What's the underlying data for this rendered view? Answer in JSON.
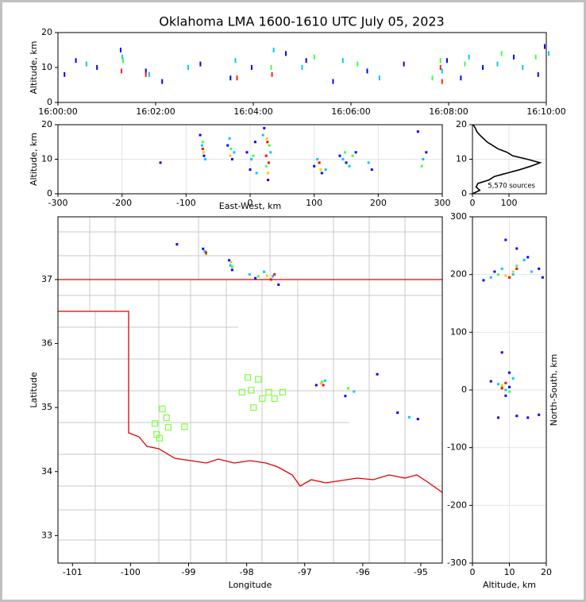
{
  "title": "Oklahoma LMA 1600-1610 UTC July 05, 2023",
  "chart_data": [
    {
      "type": "scatter",
      "ylabel": "Altitude, km",
      "xlim": [
        0,
        600
      ],
      "ylim": [
        0,
        20
      ],
      "xticks": [
        {
          "value": 0,
          "label": "16:00:00"
        },
        {
          "value": 120,
          "label": "16:02:00"
        },
        {
          "value": 240,
          "label": "16:04:00"
        },
        {
          "value": 360,
          "label": "16:06:00"
        },
        {
          "value": 480,
          "label": "16:08:00"
        },
        {
          "value": 600,
          "label": "16:10:00"
        }
      ],
      "yticks": [
        0,
        10,
        20
      ],
      "grid": false,
      "marker": "streak",
      "series": [
        {
          "color": "#0000ff",
          "x": [
            8,
            22,
            48,
            77,
            108,
            128,
            175,
            212,
            238,
            280,
            305,
            338,
            380,
            425,
            478,
            495,
            522,
            560,
            590,
            598
          ],
          "y": [
            8,
            12,
            10,
            15,
            9,
            6,
            11,
            7,
            10,
            14,
            12,
            6,
            9,
            11,
            12,
            7,
            10,
            13,
            8,
            16
          ]
        },
        {
          "color": "#00c8ff",
          "x": [
            35,
            79,
            112,
            160,
            218,
            265,
            300,
            350,
            395,
            472,
            505,
            540,
            571,
            603
          ],
          "y": [
            11,
            13,
            8,
            10,
            12,
            15,
            10,
            12,
            7,
            9,
            13,
            11,
            10,
            14
          ]
        },
        {
          "color": "#40ff40",
          "x": [
            80,
            262,
            315,
            368,
            460,
            470,
            500,
            545,
            587
          ],
          "y": [
            12,
            10,
            13,
            11,
            7,
            12,
            11,
            14,
            13
          ]
        },
        {
          "color": "#ff2000",
          "x": [
            78,
            108,
            220,
            263,
            470,
            472
          ],
          "y": [
            9,
            8,
            7,
            8,
            10,
            6
          ]
        }
      ]
    },
    {
      "type": "scatter",
      "xlabel": "East-West, km",
      "ylabel": "Altitude, km",
      "xlim": [
        -300,
        300
      ],
      "ylim": [
        0,
        20
      ],
      "xticks": [
        -300,
        -200,
        -100,
        0,
        100,
        200,
        300
      ],
      "yticks": [
        0,
        10,
        20
      ],
      "grid": true,
      "marker": "dot",
      "series": [
        {
          "color": "#0000ff",
          "x": [
            -140,
            -78,
            -72,
            -35,
            -28,
            -5,
            0,
            8,
            22,
            28,
            100,
            112,
            140,
            150,
            165,
            190,
            262,
            275
          ],
          "y": [
            9,
            17,
            11,
            14,
            10,
            12,
            7,
            15,
            19,
            4,
            8,
            6,
            11,
            9,
            12,
            7,
            18,
            12
          ]
        },
        {
          "color": "#00c8ff",
          "x": [
            -75,
            -70,
            -32,
            -25,
            2,
            10,
            20,
            32,
            105,
            118,
            145,
            155,
            185,
            270
          ],
          "y": [
            14,
            10,
            16,
            12,
            10,
            6,
            17,
            12,
            10,
            7,
            10,
            8,
            9,
            10
          ]
        },
        {
          "color": "#40ff40",
          "x": [
            -74,
            -30,
            5,
            25,
            30,
            108,
            148,
            160,
            268
          ],
          "y": [
            15,
            13,
            11,
            8,
            14,
            9,
            12,
            11,
            8
          ]
        },
        {
          "color": "#ffc800",
          "x": [
            -73,
            -31,
            26,
            28,
            110
          ],
          "y": [
            12,
            11,
            16,
            6,
            7
          ]
        },
        {
          "color": "#ff0000",
          "x": [
            -74,
            25,
            27,
            29,
            108
          ],
          "y": [
            13,
            11,
            15,
            9,
            9
          ]
        }
      ]
    },
    {
      "type": "line",
      "annotation": "5,570 sources",
      "xlim": [
        0,
        202
      ],
      "ylim": [
        0,
        20
      ],
      "xticks": [
        0,
        100
      ],
      "yticks": [
        0,
        10,
        20
      ],
      "grid": true,
      "color": "#000000",
      "x": [
        0,
        20,
        10,
        15,
        45,
        60,
        95,
        130,
        160,
        185,
        150,
        110,
        95,
        70,
        55,
        40,
        30,
        20,
        12,
        8,
        2
      ],
      "y": [
        0,
        1,
        2,
        3,
        4,
        5,
        6,
        7,
        8,
        9,
        10,
        11,
        12,
        13,
        14,
        15,
        16,
        17,
        18,
        19,
        20
      ]
    },
    {
      "type": "scatter",
      "xlabel": "Longitude",
      "ylabel": "Latitude",
      "xlim": [
        -101.25,
        -94.63
      ],
      "ylim": [
        32.57,
        37.98
      ],
      "xticks": [
        -101,
        -100,
        -99,
        -98,
        -97,
        -96,
        -95
      ],
      "yticks": [
        33,
        34,
        35,
        36,
        37
      ],
      "grid": false,
      "marker": "dot",
      "series": [
        {
          "color": "#0000ff",
          "x": [
            -99.2,
            -98.75,
            -98.3,
            -97.85,
            -97.45,
            -96.8,
            -96.3,
            -95.75,
            -95.4,
            -95.05,
            -98.25
          ],
          "y": [
            37.55,
            37.48,
            37.3,
            37.02,
            36.92,
            35.35,
            35.18,
            35.52,
            34.92,
            34.82,
            37.15
          ]
        },
        {
          "color": "#00c8ff",
          "x": [
            -98.72,
            -98.28,
            -97.95,
            -97.55,
            -96.65,
            -96.15,
            -95.2,
            -97.7
          ],
          "y": [
            37.44,
            37.22,
            37.08,
            37.05,
            35.42,
            35.25,
            34.85,
            37.12
          ]
        },
        {
          "color": "#40ff40",
          "x": [
            -98.7,
            -98.25,
            -97.8,
            -96.7,
            -96.25
          ],
          "y": [
            37.4,
            37.2,
            37.05,
            35.4,
            35.3
          ]
        },
        {
          "color": "#ffc800",
          "x": [
            -97.65,
            -96.72,
            -98.27
          ],
          "y": [
            37.06,
            35.38,
            37.27
          ]
        },
        {
          "color": "#ff0000",
          "x": [
            -98.7,
            -97.58,
            -97.52,
            -96.68
          ],
          "y": [
            37.42,
            37.0,
            37.08,
            35.35
          ]
        }
      ],
      "stations": {
        "color": "#7fff3f",
        "x": [
          -99.45,
          -99.38,
          -99.58,
          -99.35,
          -99.55,
          -99.5,
          -99.07,
          -97.98,
          -97.8,
          -98.08,
          -97.92,
          -97.73,
          -97.88,
          -97.62,
          -97.52,
          -97.38
        ],
        "y": [
          34.98,
          34.84,
          34.75,
          34.69,
          34.58,
          34.52,
          34.7,
          35.47,
          35.44,
          35.24,
          35.27,
          35.14,
          35.0,
          35.24,
          35.14,
          35.24
        ]
      }
    },
    {
      "type": "scatter",
      "xlabel": "Altitude, km",
      "ylabel": "North-South, km",
      "xlim": [
        0,
        20
      ],
      "ylim": [
        -300,
        300
      ],
      "xticks": [
        0,
        10,
        20
      ],
      "yticks": [
        -300,
        -200,
        -100,
        0,
        100,
        200,
        300
      ],
      "grid": true,
      "marker": "dot",
      "series": [
        {
          "color": "#0000ff",
          "x": [
            3,
            6,
            9,
            12,
            15,
            18,
            19,
            8,
            10,
            5,
            9,
            12,
            15,
            18,
            7,
            10
          ],
          "y": [
            190,
            205,
            260,
            245,
            230,
            210,
            195,
            65,
            30,
            15,
            -10,
            -45,
            -48,
            -43,
            -48,
            5
          ]
        },
        {
          "color": "#00c8ff",
          "x": [
            5,
            8,
            11,
            14,
            16,
            7,
            9,
            11
          ],
          "y": [
            195,
            210,
            200,
            225,
            205,
            10,
            0,
            20
          ]
        },
        {
          "color": "#40ff40",
          "x": [
            7,
            10,
            12,
            8,
            10
          ],
          "y": [
            200,
            195,
            215,
            5,
            -3
          ]
        },
        {
          "color": "#ffc800",
          "x": [
            9,
            11,
            8
          ],
          "y": [
            198,
            205,
            8
          ]
        },
        {
          "color": "#ff0000",
          "x": [
            10,
            12,
            8,
            9
          ],
          "y": [
            195,
            210,
            3,
            12
          ]
        }
      ]
    }
  ]
}
